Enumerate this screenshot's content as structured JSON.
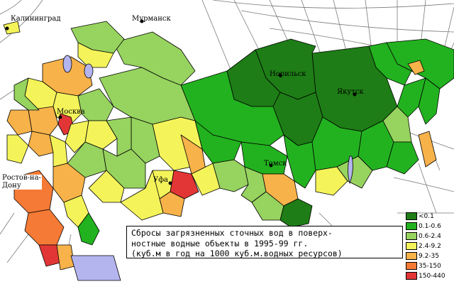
{
  "map": {
    "caption_lines": [
      "Сбросы загрязненных сточных вод в поверх-",
      "ностные водные объекты в 1995-99 гг.",
      "(куб.м в год на 1000 куб.м.водных ресурсов)"
    ],
    "cities": [
      {
        "id": "kaliningrad",
        "label": "Калининград"
      },
      {
        "id": "murmansk",
        "label": "Мурманск"
      },
      {
        "id": "moskva",
        "label": "Москва"
      },
      {
        "id": "rostov",
        "label": "Ростов-на-\nДону"
      },
      {
        "id": "ufa",
        "label": "Уфа"
      },
      {
        "id": "norilsk",
        "label": "Норильск"
      },
      {
        "id": "yakutsk",
        "label": "Якутск"
      },
      {
        "id": "tomsk",
        "label": "Томск"
      }
    ],
    "legend": [
      {
        "label": "<0.1",
        "color": "#1e7d16"
      },
      {
        "label": "0.1-0.6",
        "color": "#22b21f"
      },
      {
        "label": "0.6-2.4",
        "color": "#97d35f"
      },
      {
        "label": "2.4-9.2",
        "color": "#f4f45a"
      },
      {
        "label": "9.2-35",
        "color": "#f7b24a"
      },
      {
        "label": "35-150",
        "color": "#f57a35"
      },
      {
        "label": "150-440",
        "color": "#e23636"
      }
    ],
    "colors": {
      "lt0_1": "#1e7d16",
      "c0_1_0_6": "#22b21f",
      "c0_6_2_4": "#97d35f",
      "c2_4_9_2": "#f4f45a",
      "c9_2_35": "#f7b24a",
      "c35_150": "#f57a35",
      "c150_440": "#e23636",
      "water": "#b4b4ef",
      "graticule": "#7a7a7a",
      "border": "#000000"
    }
  }
}
